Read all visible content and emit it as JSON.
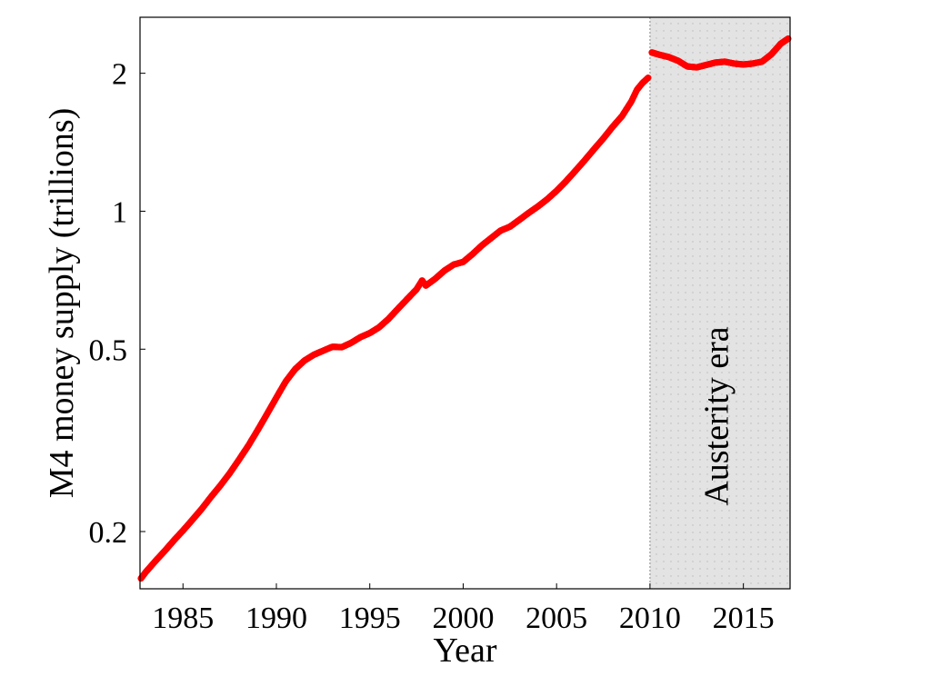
{
  "chart_data": {
    "type": "scatter",
    "title": "",
    "xlabel": "Year",
    "ylabel": "M4 money supply (trillions)",
    "x_scale": "linear",
    "y_scale": "log",
    "xlim": [
      1982.7,
      2017.5
    ],
    "ylim": [
      0.15,
      2.65
    ],
    "x_ticks": [
      1985,
      1990,
      1995,
      2000,
      2005,
      2010,
      2015
    ],
    "x_tick_labels": [
      "1985",
      "1990",
      "1995",
      "2000",
      "2005",
      "2010",
      "2015"
    ],
    "y_ticks": [
      0.2,
      0.5,
      1,
      2
    ],
    "y_tick_labels": [
      "0.2",
      "0.5",
      "1",
      "2"
    ],
    "grid": false,
    "legend": "none",
    "shaded_region": {
      "x_start": 2010,
      "x_end": 2017.5,
      "label": "Austerity era",
      "fill": "#e3e3e3"
    },
    "marker_color": "#ff0000",
    "series": [
      {
        "points": [
          [
            1982.75,
            0.158
          ],
          [
            1983.0,
            0.163
          ],
          [
            1983.5,
            0.172
          ],
          [
            1984.0,
            0.181
          ],
          [
            1984.5,
            0.191
          ],
          [
            1985.0,
            0.201
          ],
          [
            1985.5,
            0.212
          ],
          [
            1986.0,
            0.224
          ],
          [
            1986.5,
            0.238
          ],
          [
            1987.0,
            0.252
          ],
          [
            1987.5,
            0.268
          ],
          [
            1988.0,
            0.287
          ],
          [
            1988.5,
            0.308
          ],
          [
            1989.0,
            0.333
          ],
          [
            1989.5,
            0.361
          ],
          [
            1990.0,
            0.392
          ],
          [
            1990.5,
            0.425
          ],
          [
            1991.0,
            0.452
          ],
          [
            1991.5,
            0.472
          ],
          [
            1992.0,
            0.486
          ],
          [
            1992.5,
            0.496
          ],
          [
            1993.0,
            0.506
          ],
          [
            1993.5,
            0.505
          ],
          [
            1994.0,
            0.516
          ],
          [
            1994.5,
            0.531
          ],
          [
            1995.0,
            0.542
          ],
          [
            1995.5,
            0.558
          ],
          [
            1996.0,
            0.582
          ],
          [
            1996.5,
            0.612
          ],
          [
            1997.0,
            0.643
          ],
          [
            1997.5,
            0.675
          ],
          [
            1997.8,
            0.706
          ],
          [
            1998.0,
            0.688
          ],
          [
            1998.5,
            0.712
          ],
          [
            1999.0,
            0.742
          ],
          [
            1999.5,
            0.765
          ],
          [
            2000.0,
            0.775
          ],
          [
            2000.5,
            0.806
          ],
          [
            2001.0,
            0.842
          ],
          [
            2001.5,
            0.874
          ],
          [
            2002.0,
            0.907
          ],
          [
            2002.5,
            0.925
          ],
          [
            2003.0,
            0.957
          ],
          [
            2003.5,
            0.991
          ],
          [
            2004.0,
            1.024
          ],
          [
            2004.5,
            1.062
          ],
          [
            2005.0,
            1.108
          ],
          [
            2005.5,
            1.162
          ],
          [
            2006.0,
            1.224
          ],
          [
            2006.5,
            1.291
          ],
          [
            2007.0,
            1.365
          ],
          [
            2007.5,
            1.441
          ],
          [
            2008.0,
            1.528
          ],
          [
            2008.5,
            1.612
          ],
          [
            2009.0,
            1.735
          ],
          [
            2009.3,
            1.84
          ],
          [
            2009.6,
            1.905
          ],
          [
            2009.9,
            1.955
          ],
          [
            2010.1,
            2.22
          ],
          [
            2010.5,
            2.195
          ],
          [
            2011.0,
            2.17
          ],
          [
            2011.5,
            2.13
          ],
          [
            2012.0,
            2.07
          ],
          [
            2012.5,
            2.06
          ],
          [
            2013.0,
            2.085
          ],
          [
            2013.5,
            2.11
          ],
          [
            2014.0,
            2.12
          ],
          [
            2014.5,
            2.1
          ],
          [
            2015.0,
            2.09
          ],
          [
            2015.5,
            2.1
          ],
          [
            2016.0,
            2.12
          ],
          [
            2016.5,
            2.2
          ],
          [
            2017.0,
            2.32
          ],
          [
            2017.4,
            2.38
          ]
        ]
      }
    ]
  }
}
